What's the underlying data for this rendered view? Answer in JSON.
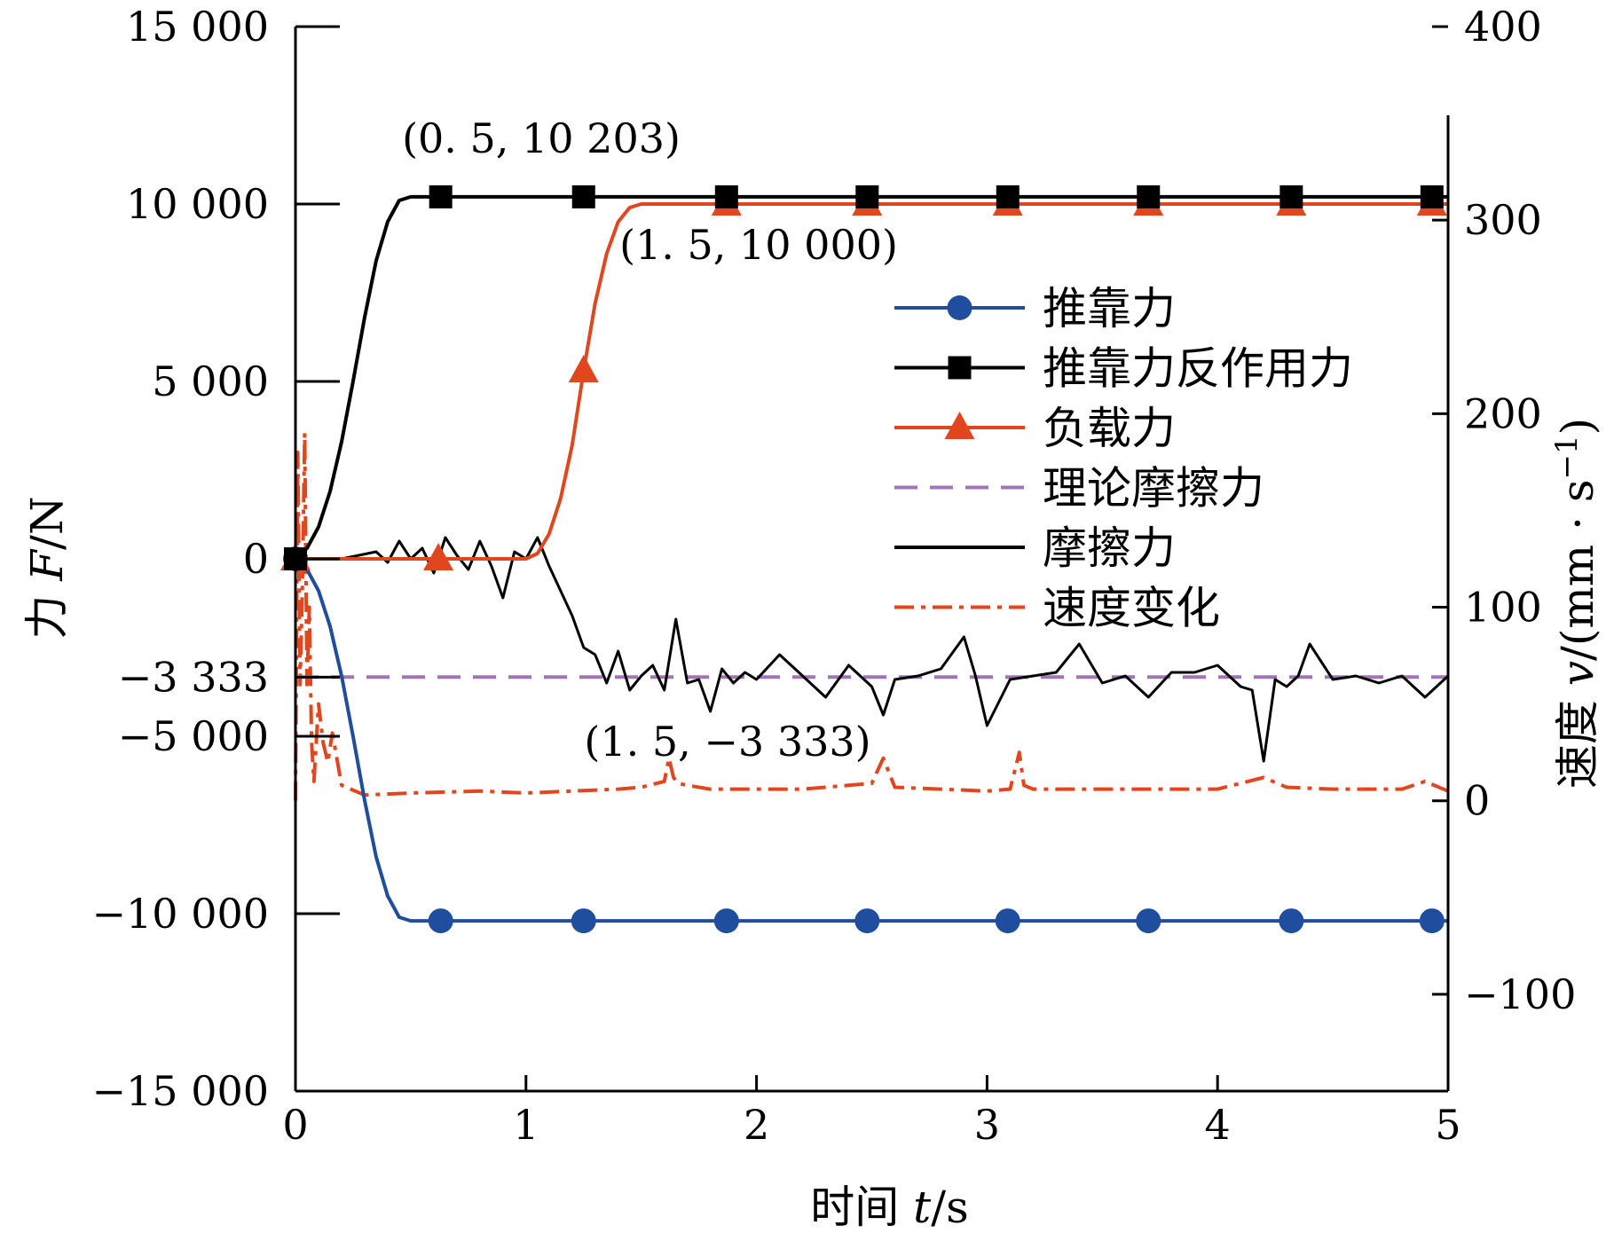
{
  "chart_data": {
    "type": "line",
    "title": "",
    "xlabel": {
      "prefix": "时间 ",
      "var": "t",
      "suffix": "/s"
    },
    "ylabel_left": {
      "prefix": "力 ",
      "var": "F",
      "suffix": "/N"
    },
    "ylabel_right": {
      "prefix": "速度 ",
      "var": "v",
      "suffix": "/(mm · s",
      "sup": "−1",
      "close": ")"
    },
    "x_range": [
      0,
      5
    ],
    "y_left_range": [
      -15000,
      15000
    ],
    "y_right_range": [
      -150,
      400
    ],
    "x_ticks": [
      0,
      1,
      2,
      3,
      4,
      5
    ],
    "x_tick_labels": [
      "0",
      "1",
      "2",
      "3",
      "4",
      "5"
    ],
    "y_left_ticks": [
      15000,
      10000,
      5000,
      0,
      -3333,
      -5000,
      -10000,
      -15000
    ],
    "y_left_tick_labels": [
      "15 000",
      "10 000",
      "5 000",
      "0",
      "−3 333",
      "−5 000",
      "−10 000",
      "−15 000"
    ],
    "y_right_ticks": [
      400,
      300,
      200,
      100,
      0,
      -100
    ],
    "y_right_tick_labels": [
      "400",
      "300",
      "200",
      "100",
      "0",
      "−100"
    ],
    "grid": false,
    "legend_position": "right-middle",
    "colors": {
      "push": "#1f4e9e",
      "reaction": "#000000",
      "load": "#e2461e",
      "theory": "#a373b8",
      "friction": "#000000",
      "velocity": "#e2461e"
    },
    "series": [
      {
        "key": "push",
        "name": "推靠力",
        "axis": "left",
        "marker": "circle",
        "style": "solid",
        "x": [
          0,
          0.05,
          0.1,
          0.15,
          0.2,
          0.25,
          0.3,
          0.35,
          0.4,
          0.45,
          0.5,
          0.62,
          1.25,
          1.87,
          2.48,
          3.09,
          3.7,
          4.32,
          4.93,
          5.0
        ],
        "y": [
          0,
          -300,
          -900,
          -1900,
          -3300,
          -5000,
          -6800,
          -8400,
          -9500,
          -10100,
          -10203,
          -10203,
          -10203,
          -10203,
          -10203,
          -10203,
          -10203,
          -10203,
          -10203,
          -10203
        ],
        "marker_x": [
          0,
          0.63,
          1.25,
          1.87,
          2.48,
          3.09,
          3.7,
          4.32,
          4.93
        ]
      },
      {
        "key": "reaction",
        "name": "推靠力反作用力",
        "axis": "left",
        "marker": "square",
        "style": "solid",
        "x": [
          0,
          0.05,
          0.1,
          0.15,
          0.2,
          0.25,
          0.3,
          0.35,
          0.4,
          0.45,
          0.5,
          0.63,
          1.25,
          1.87,
          2.48,
          3.09,
          3.7,
          4.32,
          4.93,
          5.0
        ],
        "y": [
          0,
          300,
          900,
          1900,
          3300,
          5000,
          6800,
          8400,
          9500,
          10100,
          10203,
          10203,
          10203,
          10203,
          10203,
          10203,
          10203,
          10203,
          10203,
          10203
        ],
        "marker_x": [
          0,
          0.63,
          1.25,
          1.87,
          2.48,
          3.09,
          3.7,
          4.32,
          4.93
        ]
      },
      {
        "key": "load",
        "name": "负载力",
        "axis": "left",
        "marker": "triangle",
        "style": "solid",
        "x": [
          0,
          0.5,
          0.62,
          1.0,
          1.05,
          1.1,
          1.15,
          1.2,
          1.25,
          1.3,
          1.35,
          1.4,
          1.45,
          1.5,
          1.87,
          2.48,
          3.09,
          3.7,
          4.32,
          4.93,
          5.0
        ],
        "y": [
          0,
          0,
          0,
          0,
          150,
          700,
          1700,
          3200,
          5300,
          7200,
          8600,
          9500,
          9900,
          10000,
          10000,
          10000,
          10000,
          10000,
          10000,
          10000,
          10000
        ],
        "marker_x": [
          0,
          0.62,
          1.25,
          1.87,
          2.48,
          3.09,
          3.7,
          4.32,
          4.93
        ]
      },
      {
        "key": "theory",
        "name": "理论摩擦力",
        "axis": "left",
        "marker": "none",
        "style": "dashed",
        "x": [
          0,
          5
        ],
        "y": [
          -3333,
          -3333
        ]
      },
      {
        "key": "friction",
        "name": "摩擦力",
        "axis": "left",
        "marker": "none",
        "style": "solid",
        "x": [
          0,
          0.2,
          0.35,
          0.4,
          0.45,
          0.5,
          0.55,
          0.6,
          0.65,
          0.7,
          0.75,
          0.8,
          0.85,
          0.9,
          0.95,
          1.0,
          1.05,
          1.1,
          1.15,
          1.2,
          1.25,
          1.3,
          1.35,
          1.4,
          1.45,
          1.5,
          1.55,
          1.6,
          1.65,
          1.7,
          1.75,
          1.8,
          1.85,
          1.9,
          1.95,
          2.0,
          2.1,
          2.2,
          2.3,
          2.4,
          2.5,
          2.55,
          2.6,
          2.7,
          2.8,
          2.9,
          2.95,
          3.0,
          3.1,
          3.2,
          3.3,
          3.4,
          3.5,
          3.6,
          3.7,
          3.8,
          3.9,
          4.0,
          4.1,
          4.15,
          4.2,
          4.25,
          4.3,
          4.35,
          4.4,
          4.5,
          4.6,
          4.7,
          4.8,
          4.9,
          5.0
        ],
        "y": [
          0,
          0,
          200,
          -100,
          500,
          0,
          300,
          -400,
          600,
          100,
          -300,
          500,
          -200,
          -1100,
          200,
          0,
          600,
          -200,
          -900,
          -1600,
          -2500,
          -2700,
          -3500,
          -2600,
          -3700,
          -3300,
          -3000,
          -3700,
          -1700,
          -3500,
          -3400,
          -4300,
          -3100,
          -3500,
          -3200,
          -3400,
          -2700,
          -3300,
          -3900,
          -3000,
          -3600,
          -4400,
          -3400,
          -3300,
          -3100,
          -2200,
          -3300,
          -4700,
          -3400,
          -3300,
          -3200,
          -2400,
          -3500,
          -3300,
          -3900,
          -3200,
          -3200,
          -3000,
          -3600,
          -3700,
          -5700,
          -3400,
          -3600,
          -3300,
          -2400,
          -3400,
          -3300,
          -3500,
          -3300,
          -3900,
          -3300
        ]
      },
      {
        "key": "velocity",
        "name": "速度变化",
        "axis": "right",
        "marker": "none",
        "style": "dashdot",
        "x": [
          0,
          0.01,
          0.02,
          0.03,
          0.04,
          0.05,
          0.06,
          0.07,
          0.08,
          0.1,
          0.12,
          0.14,
          0.16,
          0.2,
          0.3,
          0.5,
          0.8,
          1.0,
          1.2,
          1.4,
          1.5,
          1.6,
          1.62,
          1.64,
          1.66,
          1.7,
          1.8,
          2.0,
          2.2,
          2.3,
          2.4,
          2.5,
          2.55,
          2.6,
          2.8,
          3.0,
          3.1,
          3.14,
          3.16,
          3.2,
          3.3,
          3.4,
          3.5,
          3.8,
          4.0,
          4.2,
          4.3,
          4.5,
          4.8,
          4.9,
          5.0
        ],
        "y": [
          0,
          180,
          60,
          110,
          190,
          60,
          100,
          30,
          10,
          50,
          30,
          20,
          35,
          8,
          3,
          4,
          5,
          4,
          5,
          6,
          7,
          10,
          22,
          12,
          9,
          8,
          6,
          6,
          6,
          7,
          8,
          9,
          22,
          7,
          6,
          5,
          6,
          25,
          8,
          6,
          6,
          6,
          6,
          6,
          6,
          12,
          7,
          6,
          6,
          10,
          5
        ]
      }
    ],
    "annotations": [
      {
        "text": "(0. 5, 10 203)",
        "x": 0.5,
        "y": 10203
      },
      {
        "text": "(1. 5, 10 000)",
        "x": 1.5,
        "y": 10000
      },
      {
        "text": "(1. 5, −3 333)",
        "x": 1.5,
        "y": -3333
      }
    ]
  }
}
